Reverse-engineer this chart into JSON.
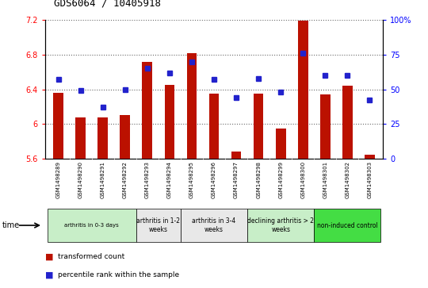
{
  "title": "GDS6064 / 10405918",
  "samples": [
    "GSM1498289",
    "GSM1498290",
    "GSM1498291",
    "GSM1498292",
    "GSM1498293",
    "GSM1498294",
    "GSM1498295",
    "GSM1498296",
    "GSM1498297",
    "GSM1498298",
    "GSM1498299",
    "GSM1498300",
    "GSM1498301",
    "GSM1498302",
    "GSM1498303"
  ],
  "red_values": [
    6.36,
    6.07,
    6.07,
    6.1,
    6.72,
    6.45,
    6.82,
    6.35,
    5.68,
    6.35,
    5.95,
    7.19,
    6.34,
    6.44,
    5.64
  ],
  "blue_values": [
    57,
    49,
    37,
    50,
    65,
    62,
    70,
    57,
    44,
    58,
    48,
    76,
    60,
    60,
    42
  ],
  "ylim_left": [
    5.6,
    7.2
  ],
  "ylim_right": [
    0,
    100
  ],
  "yticks_left": [
    5.6,
    6.0,
    6.4,
    6.8,
    7.2
  ],
  "yticks_right": [
    0,
    25,
    50,
    75,
    100
  ],
  "ytick_labels_left": [
    "5.6",
    "6",
    "6.4",
    "6.8",
    "7.2"
  ],
  "ytick_labels_right": [
    "0",
    "25",
    "50",
    "75",
    "100%"
  ],
  "bar_color": "#bb1100",
  "dot_color": "#2222cc",
  "baseline": 5.6,
  "groups": [
    {
      "label": "arthritis in 0-3 days",
      "start": 0,
      "end": 4,
      "fc": "#c8eec8"
    },
    {
      "label": "arthritis in 1-2\nweeks",
      "start": 4,
      "end": 6,
      "fc": "#e8e8e8"
    },
    {
      "label": "arthritis in 3-4\nweeks",
      "start": 6,
      "end": 9,
      "fc": "#e8e8e8"
    },
    {
      "label": "declining arthritis > 2\nweeks",
      "start": 9,
      "end": 12,
      "fc": "#c8eec8"
    },
    {
      "label": "non-induced control",
      "start": 12,
      "end": 15,
      "fc": "#44dd44"
    }
  ],
  "legend_red": "transformed count",
  "legend_blue": "percentile rank within the sample",
  "bar_width": 0.45,
  "xlim": [
    -0.6,
    14.6
  ],
  "plot_bg": "#ffffff",
  "tick_row_bg": "#d0d0d0",
  "grid_color": "#000000",
  "grid_alpha": 0.6
}
